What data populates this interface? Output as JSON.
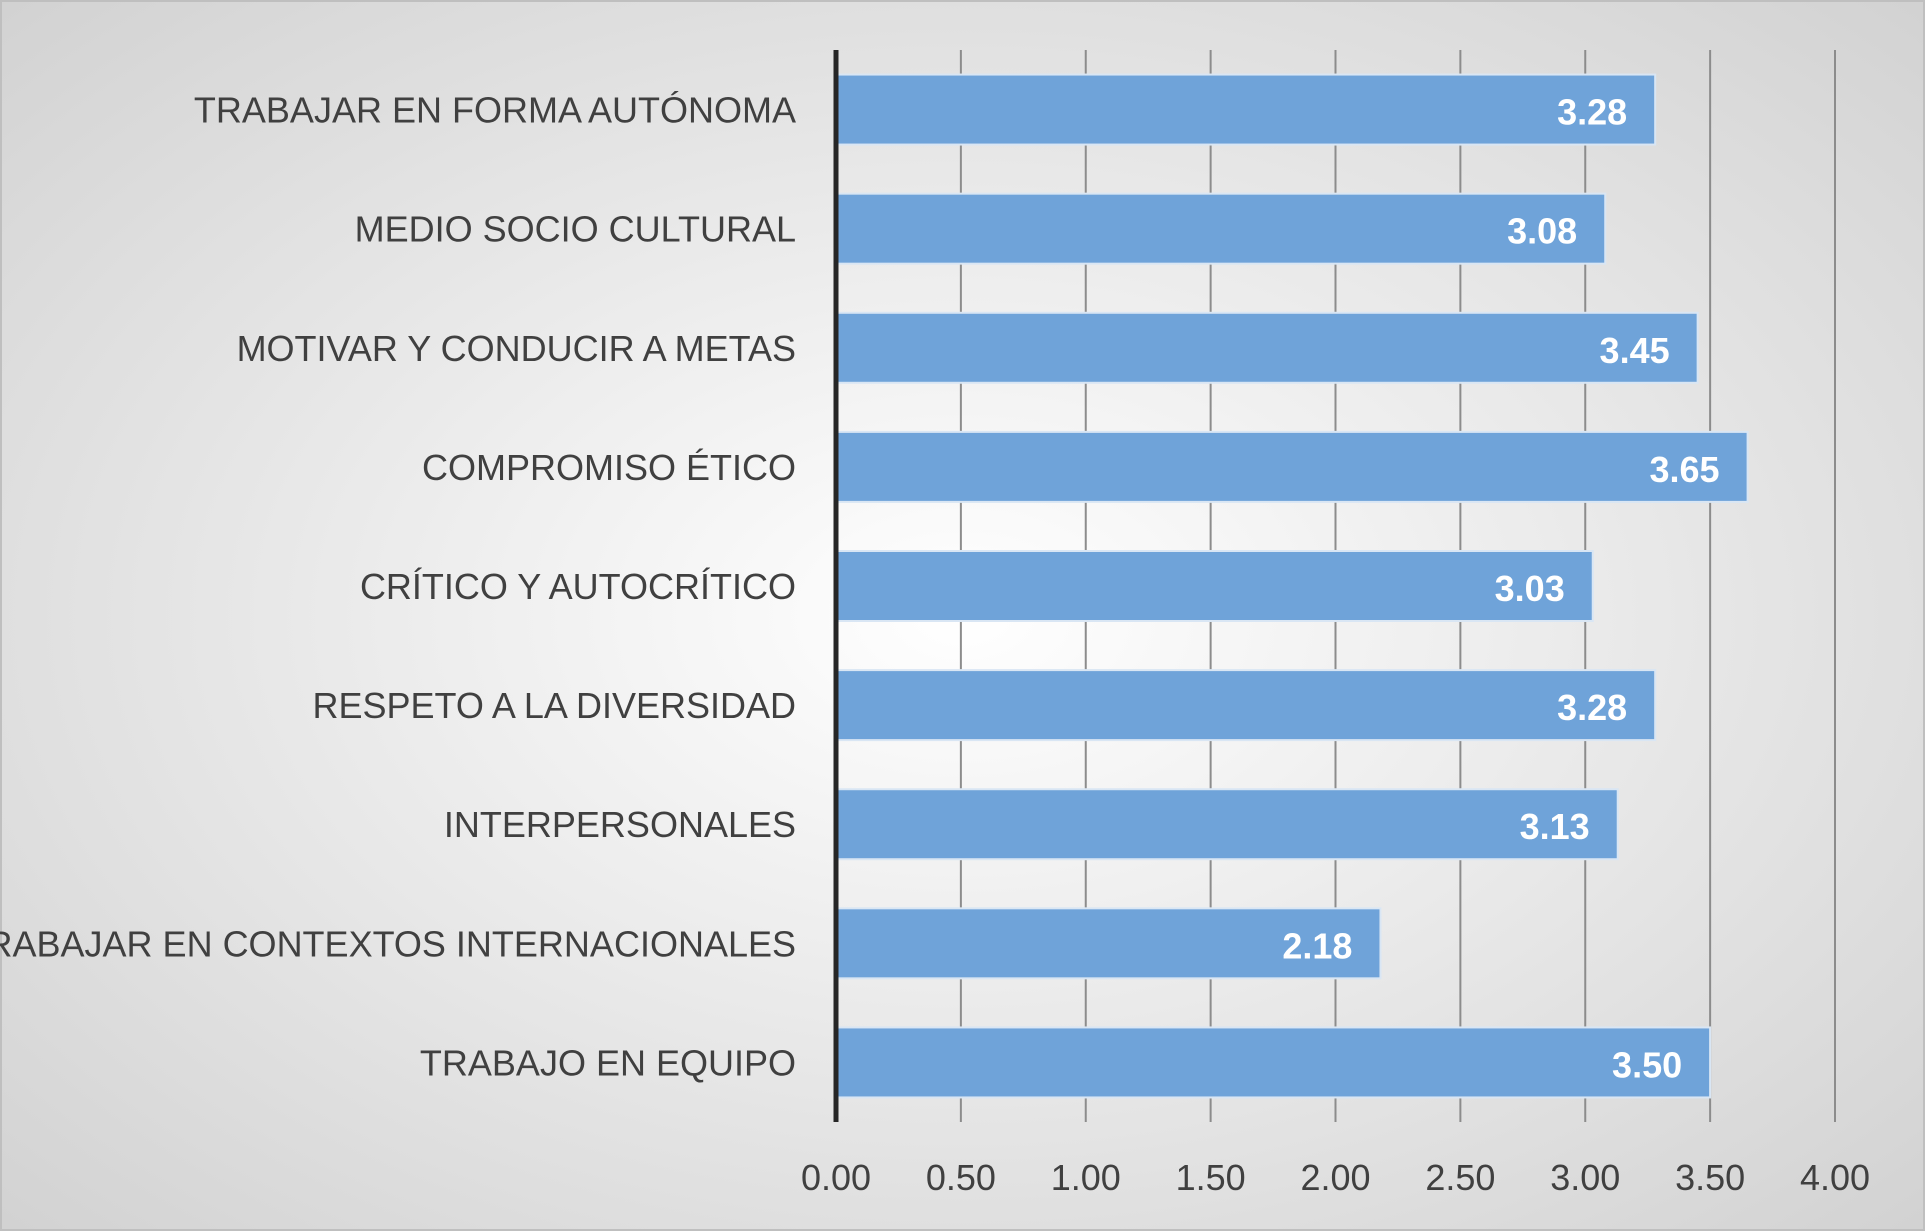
{
  "chart_data": {
    "type": "bar",
    "orientation": "horizontal",
    "title": "",
    "xlabel": "",
    "ylabel": "",
    "categories": [
      "TRABAJAR EN FORMA AUTÓNOMA",
      "MEDIO SOCIO CULTURAL",
      "MOTIVAR Y CONDUCIR A METAS",
      "COMPROMISO ÉTICO",
      "CRÍTICO Y AUTOCRÍTICO",
      "RESPETO A LA DIVERSIDAD",
      "INTERPERSONALES",
      "TRABAJAR EN CONTEXTOS INTERNACIONALES",
      "TRABAJO EN EQUIPO"
    ],
    "values": [
      3.28,
      3.08,
      3.45,
      3.65,
      3.03,
      3.28,
      3.13,
      2.18,
      3.5
    ],
    "data_labels": [
      "3.28",
      "3.08",
      "3.45",
      "3.65",
      "3.03",
      "3.28",
      "3.13",
      "2.18",
      "3.50"
    ],
    "xlim": [
      0,
      4
    ],
    "x_ticks": [
      "0.00",
      "0.50",
      "1.00",
      "1.50",
      "2.00",
      "2.50",
      "3.00",
      "3.50",
      "4.00"
    ],
    "grid": "vertical",
    "legend": "none",
    "colors": {
      "bar": "#6fa3d9",
      "bar_edge": "#d9e6f4",
      "grid": "#8c8c8c",
      "axis": "#262626",
      "text": "#404040",
      "data_label": "#ffffff",
      "background_light": "#ffffff",
      "background_dark": "#cfcfcf"
    }
  }
}
